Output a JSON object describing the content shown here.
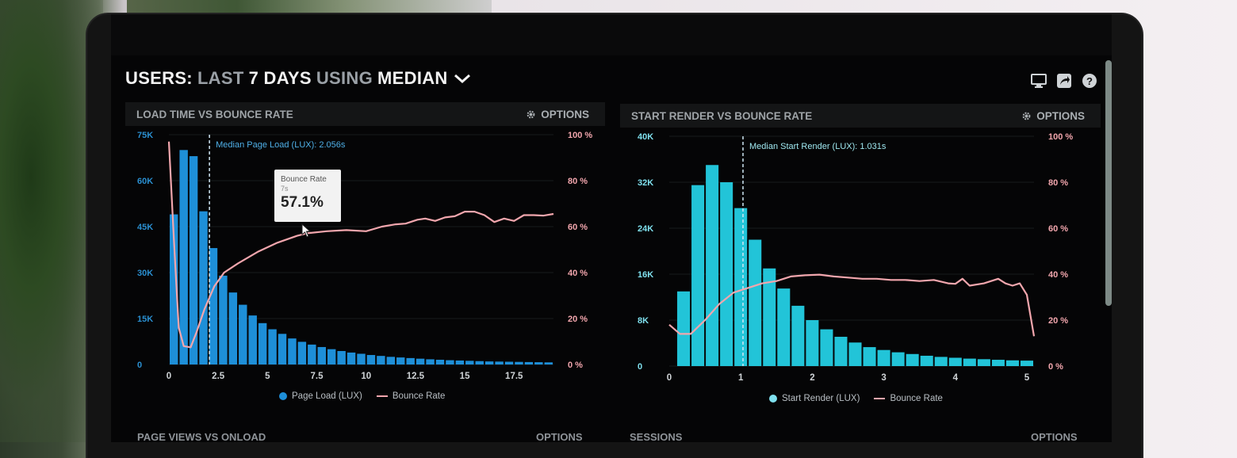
{
  "dashboard": {
    "title_parts": [
      "USERS:",
      "LAST",
      "7 DAYS",
      "USING",
      "MEDIAN"
    ],
    "icons": [
      "monitor-icon",
      "share-icon",
      "help-icon"
    ]
  },
  "panels": {
    "left": {
      "title": "LOAD TIME VS BOUNCE RATE",
      "options": "OPTIONS"
    },
    "right": {
      "title": "START RENDER VS BOUNCE RATE",
      "options": "OPTIONS"
    },
    "bottom_left": {
      "title": "PAGE VIEWS VS ONLOAD",
      "options": "OPTIONS"
    },
    "bottom_right": {
      "title": "SESSIONS",
      "options": "OPTIONS"
    }
  },
  "tooltip": {
    "label": "Bounce Rate",
    "sub": "7s",
    "value": "57.1%"
  },
  "chart_data": [
    {
      "type": "bar",
      "title": "LOAD TIME VS BOUNCE RATE",
      "annotation": "Median Page Load (LUX): 2.056s",
      "annotation_x": 2.056,
      "x_ticks": [
        "0",
        "2.5",
        "5",
        "7.5",
        "10",
        "12.5",
        "15",
        "17.5"
      ],
      "x_range": [
        0,
        19.5
      ],
      "y_ticks": [
        "0",
        "15K",
        "30K",
        "45K",
        "60K",
        "75K"
      ],
      "ylim": [
        0,
        75000
      ],
      "y2_ticks": [
        "0 %",
        "20 %",
        "40 %",
        "60 %",
        "80 %",
        "100 %"
      ],
      "y2lim": [
        0,
        100
      ],
      "colors": {
        "bars": "#1e8fd8",
        "line": "#f2a6ad"
      },
      "series": [
        {
          "name": "Page Load (LUX)",
          "type": "bar",
          "bin_start": 0,
          "bin_width": 0.5,
          "values": [
            49000,
            70000,
            68000,
            50000,
            38000,
            29000,
            23500,
            19500,
            16000,
            13500,
            11500,
            10000,
            8500,
            7400,
            6500,
            5700,
            5000,
            4400,
            3900,
            3500,
            3100,
            2800,
            2500,
            2300,
            2100,
            1900,
            1700,
            1550,
            1400,
            1300,
            1200,
            1100,
            1000,
            950,
            900,
            850,
            800,
            750,
            700
          ]
        },
        {
          "name": "Bounce Rate",
          "type": "line",
          "points": [
            [
              0,
              97
            ],
            [
              0.25,
              55
            ],
            [
              0.5,
              16
            ],
            [
              0.75,
              8
            ],
            [
              1.1,
              7.5
            ],
            [
              1.4,
              14
            ],
            [
              1.8,
              24
            ],
            [
              2.3,
              34
            ],
            [
              2.8,
              40
            ],
            [
              3.5,
              44
            ],
            [
              4.5,
              49
            ],
            [
              5.5,
              53
            ],
            [
              6.5,
              56
            ],
            [
              7,
              57.1
            ],
            [
              8,
              58
            ],
            [
              9,
              58.5
            ],
            [
              10,
              58
            ],
            [
              10.8,
              60
            ],
            [
              11.5,
              61
            ],
            [
              12,
              61.3
            ],
            [
              12.6,
              63
            ],
            [
              13,
              63.5
            ],
            [
              13.5,
              62.5
            ],
            [
              14,
              64
            ],
            [
              14.5,
              64.5
            ],
            [
              15,
              66.5
            ],
            [
              15.5,
              66.5
            ],
            [
              16,
              65
            ],
            [
              16.5,
              62
            ],
            [
              17,
              63.5
            ],
            [
              17.5,
              62.5
            ],
            [
              18,
              65
            ],
            [
              18.5,
              65
            ],
            [
              19,
              64.8
            ],
            [
              19.5,
              65.5
            ]
          ]
        }
      ],
      "legend": [
        "Page Load (LUX)",
        "Bounce Rate"
      ]
    },
    {
      "type": "bar",
      "title": "START RENDER VS BOUNCE RATE",
      "annotation": "Median Start Render (LUX): 1.031s",
      "annotation_x": 1.031,
      "x_ticks": [
        "0",
        "1",
        "2",
        "3",
        "4",
        "5"
      ],
      "x_range": [
        0,
        5.1
      ],
      "y_ticks": [
        "0",
        "8K",
        "16K",
        "24K",
        "32K",
        "40K"
      ],
      "ylim": [
        0,
        40000
      ],
      "y2_ticks": [
        "0 %",
        "20 %",
        "40 %",
        "60 %",
        "80 %",
        "100 %"
      ],
      "y2lim": [
        0,
        100
      ],
      "colors": {
        "bars": "#22c4d8",
        "line": "#f2a6ad"
      },
      "series": [
        {
          "name": "Start Render (LUX)",
          "type": "bar",
          "bin_start": 0.1,
          "bin_width": 0.2,
          "values": [
            13000,
            31500,
            35000,
            32000,
            27500,
            22000,
            17000,
            13500,
            10500,
            8000,
            6400,
            5100,
            4100,
            3300,
            2800,
            2400,
            2100,
            1800,
            1600,
            1450,
            1300,
            1200,
            1100,
            1000,
            950
          ]
        },
        {
          "name": "Bounce Rate",
          "type": "line",
          "points": [
            [
              0,
              18
            ],
            [
              0.15,
              14
            ],
            [
              0.3,
              14
            ],
            [
              0.5,
              20
            ],
            [
              0.7,
              27
            ],
            [
              0.9,
              32
            ],
            [
              1.1,
              34
            ],
            [
              1.3,
              36
            ],
            [
              1.5,
              37
            ],
            [
              1.7,
              39
            ],
            [
              1.9,
              39.5
            ],
            [
              2.1,
              39.8
            ],
            [
              2.3,
              39
            ],
            [
              2.5,
              38.5
            ],
            [
              2.7,
              38
            ],
            [
              2.9,
              38
            ],
            [
              3.1,
              37.5
            ],
            [
              3.3,
              37.5
            ],
            [
              3.5,
              37
            ],
            [
              3.7,
              37.5
            ],
            [
              3.9,
              36
            ],
            [
              4.0,
              35.8
            ],
            [
              4.1,
              38
            ],
            [
              4.2,
              35
            ],
            [
              4.4,
              36
            ],
            [
              4.6,
              38
            ],
            [
              4.7,
              36
            ],
            [
              4.8,
              35
            ],
            [
              4.9,
              36
            ],
            [
              5.0,
              31
            ],
            [
              5.1,
              13
            ]
          ]
        }
      ],
      "legend": [
        "Start Render (LUX)",
        "Bounce Rate"
      ]
    }
  ]
}
